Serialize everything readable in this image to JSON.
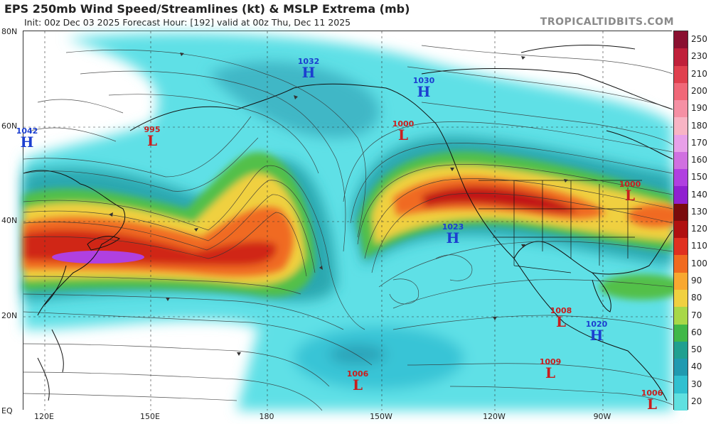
{
  "header": {
    "title": "EPS 250mb Wind Speed/Streamlines (kt) & MSLP Extrema (mb)",
    "subtitle": "Init: 00z Dec 03 2025   Forecast Hour: [192]   valid at 00z Thu, Dec 11 2025",
    "brand": "TROPICALTIDBITS.COM"
  },
  "axes": {
    "lat_labels": [
      "80N",
      "60N",
      "40N",
      "20N",
      "EQ"
    ],
    "lon_labels": [
      "120E",
      "150E",
      "180",
      "150W",
      "120W",
      "90W"
    ]
  },
  "colorbar": {
    "labels": [
      "250",
      "230",
      "210",
      "200",
      "190",
      "180",
      "170",
      "160",
      "150",
      "140",
      "130",
      "120",
      "110",
      "100",
      "90",
      "80",
      "70",
      "60",
      "50",
      "40",
      "30",
      "20"
    ],
    "colors": [
      "#8a1030",
      "#c0203a",
      "#e0404e",
      "#f06878",
      "#f590a4",
      "#f8b4c4",
      "#e8a0e8",
      "#d070e0",
      "#b040e0",
      "#9020d0",
      "#7a0c0c",
      "#b01010",
      "#e03020",
      "#f06a20",
      "#f8a830",
      "#f0d040",
      "#a8d848",
      "#40b848",
      "#20a090",
      "#209ab0",
      "#30c0d0",
      "#60e0e0"
    ]
  },
  "extrema": [
    {
      "type": "H",
      "value": "1042"
    },
    {
      "type": "L",
      "value": "995"
    },
    {
      "type": "H",
      "value": "1032"
    },
    {
      "type": "H",
      "value": "1030"
    },
    {
      "type": "L",
      "value": "1000"
    },
    {
      "type": "L",
      "value": "1000"
    },
    {
      "type": "H",
      "value": "1023"
    },
    {
      "type": "L",
      "value": "1008"
    },
    {
      "type": "H",
      "value": "1020"
    },
    {
      "type": "L",
      "value": "1009"
    },
    {
      "type": "L",
      "value": "1006"
    },
    {
      "type": "L",
      "value": "1006"
    }
  ],
  "symbols": {
    "H": "H",
    "L": "L"
  }
}
